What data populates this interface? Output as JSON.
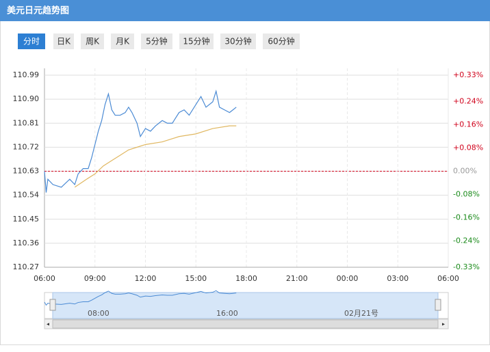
{
  "header": {
    "title": "美元日元趋势图"
  },
  "tabs": [
    "分时",
    "日K",
    "周K",
    "月K",
    "5分钟",
    "15分钟",
    "30分钟",
    "60分钟"
  ],
  "chart_data": {
    "type": "line",
    "xlim": [
      6,
      30
    ],
    "xticks": [
      {
        "value": 6,
        "label": "06:00"
      },
      {
        "value": 9,
        "label": "09:00"
      },
      {
        "value": 12,
        "label": "12:00"
      },
      {
        "value": 15,
        "label": "15:00"
      },
      {
        "value": 18,
        "label": "18:00"
      },
      {
        "value": 21,
        "label": "21:00"
      },
      {
        "value": 24,
        "label": "00:00"
      },
      {
        "value": 27,
        "label": "03:00"
      },
      {
        "value": 30,
        "label": "06:00"
      }
    ],
    "ylim": [
      110.27,
      110.99
    ],
    "yticks": [
      {
        "value": 110.27,
        "label": "110.27"
      },
      110.36,
      110.45,
      110.54,
      110.63,
      110.72,
      110.81,
      {
        "value": 110.9,
        "label": "110.90"
      },
      110.99
    ],
    "y2lim": [
      -0.33,
      0.33
    ],
    "y2ticks": [
      {
        "value": -0.33,
        "label": "-0.33%"
      },
      {
        "value": -0.24,
        "label": "-0.24%"
      },
      {
        "value": -0.16,
        "label": "-0.16%"
      },
      {
        "value": -0.08,
        "label": "-0.08%"
      },
      {
        "value": 0,
        "label": "0.00%"
      },
      {
        "value": 0.08,
        "label": "+0.08%"
      },
      {
        "value": 0.16,
        "label": "+0.16%"
      },
      {
        "value": 0.24,
        "label": "+0.24%"
      },
      {
        "value": 0.33,
        "label": "+0.33%"
      }
    ],
    "grid": true,
    "series": [
      {
        "color": "#4a8ad4",
        "x": [
          6.0,
          6.1,
          6.2,
          6.5,
          7.0,
          7.5,
          7.8,
          8.0,
          8.3,
          8.6,
          8.8,
          9.0,
          9.2,
          9.4,
          9.6,
          9.8,
          10.0,
          10.2,
          10.5,
          10.8,
          11.0,
          11.2,
          11.5,
          11.7,
          12.0,
          12.3,
          12.6,
          13.0,
          13.3,
          13.6,
          14.0,
          14.3,
          14.6,
          15.0,
          15.3,
          15.6,
          16.0,
          16.2,
          16.4,
          16.7,
          17.0,
          17.2,
          17.4
        ],
        "values": [
          110.63,
          110.55,
          110.6,
          110.58,
          110.57,
          110.6,
          110.58,
          110.62,
          110.64,
          110.64,
          110.68,
          110.73,
          110.78,
          110.82,
          110.88,
          110.92,
          110.86,
          110.84,
          110.84,
          110.85,
          110.87,
          110.85,
          110.81,
          110.76,
          110.79,
          110.78,
          110.8,
          110.82,
          110.81,
          110.81,
          110.85,
          110.86,
          110.84,
          110.88,
          110.91,
          110.87,
          110.89,
          110.93,
          110.87,
          110.86,
          110.85,
          110.86,
          110.87
        ]
      },
      {
        "color": "#e0b760",
        "x": [
          7.8,
          8.5,
          9.0,
          9.5,
          10.0,
          10.5,
          11.0,
          11.5,
          12.0,
          13.0,
          14.0,
          15.0,
          16.0,
          17.0,
          17.4
        ],
        "values": [
          110.57,
          110.6,
          110.62,
          110.65,
          110.67,
          110.69,
          110.71,
          110.72,
          110.73,
          110.74,
          110.76,
          110.77,
          110.79,
          110.8,
          110.8
        ]
      }
    ],
    "navigator_labels": [
      "08:00",
      "16:00",
      "02月21号"
    ]
  }
}
